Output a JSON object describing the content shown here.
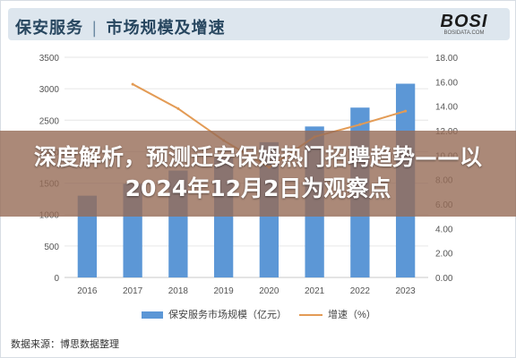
{
  "header": {
    "title_left": "保安服务",
    "separator": "|",
    "title_right": "市场规模及增速",
    "logo_text": "BOSI",
    "logo_sub": "BOSIDATA.COM"
  },
  "overlay": {
    "headline": "深度解析，预测迁安保姆热门招聘趋势——以2024年12月2日为观察点"
  },
  "legend": {
    "bar_label": "保安服务市场规模（亿元）",
    "line_label": "增速（%）"
  },
  "source": "数据来源：博思数据整理",
  "colors": {
    "bar": "#5c97d6",
    "line": "#e39b55",
    "header_bg": "#dde6ee",
    "title": "#27465f",
    "overlay": "rgba(150,108,86,0.80)"
  },
  "chart_data": {
    "type": "bar",
    "categories": [
      "2016",
      "2017",
      "2018",
      "2019",
      "2020",
      "2021",
      "2022",
      "2023"
    ],
    "series": [
      {
        "name": "保安服务市场规模（亿元）",
        "type": "bar",
        "axis": "left",
        "values": [
          1300,
          1490,
          1700,
          1900,
          2150,
          2400,
          2700,
          3080
        ]
      },
      {
        "name": "增速（%）",
        "type": "line",
        "axis": "right",
        "values": [
          null,
          15.8,
          13.8,
          11.2,
          9.0,
          11.5,
          12.5,
          13.6
        ]
      }
    ],
    "y_left": {
      "ticks": [
        "0",
        "500",
        "1000",
        "1500",
        "2000",
        "2500",
        "3000",
        "3500"
      ],
      "min": 0,
      "max": 3500
    },
    "y_right": {
      "ticks": [
        "0.00",
        "2.00",
        "4.00",
        "6.00",
        "8.00",
        "10.00",
        "12.00",
        "14.00",
        "16.00",
        "18.00"
      ],
      "min": 0,
      "max": 18
    },
    "grid": true,
    "legend_position": "bottom"
  }
}
